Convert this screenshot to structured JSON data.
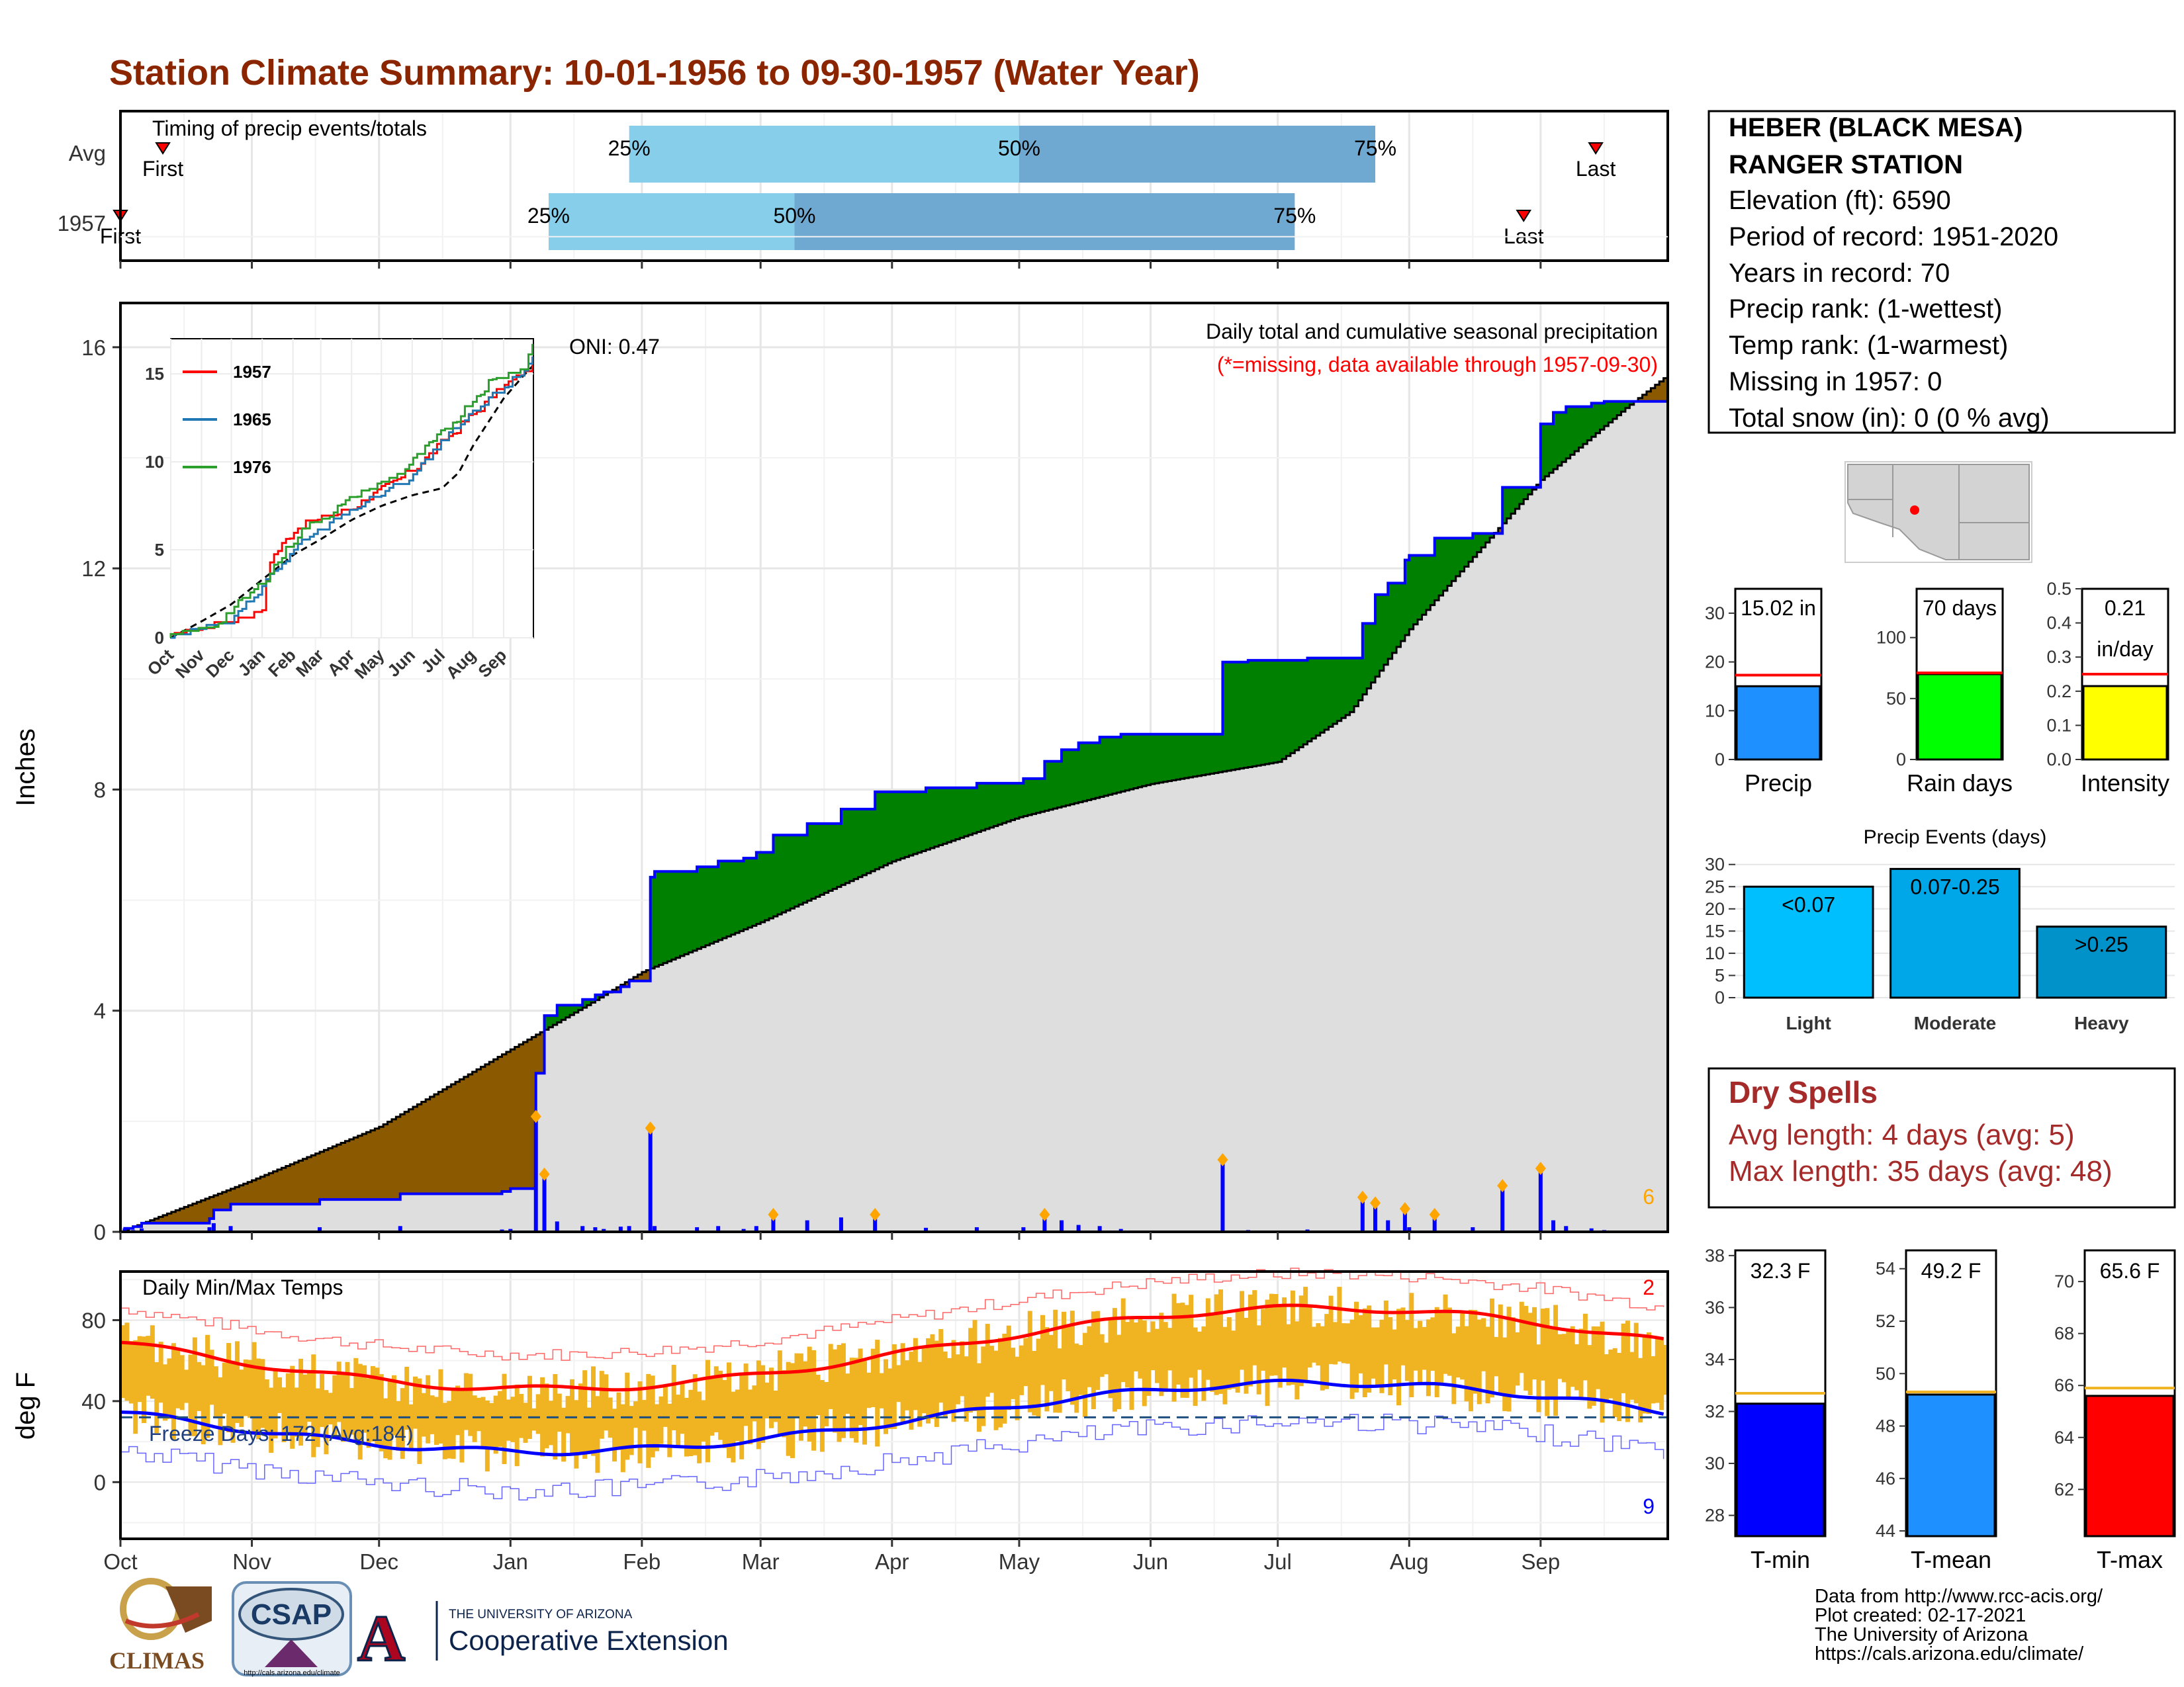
{
  "title": "Station Climate Summary: 10-01-1956 to 09-30-1957 (Water Year)",
  "colors": {
    "title": "#8b2500",
    "q1": "#87ceeb",
    "q2": "#6fa8d0",
    "surplus": "#008000",
    "deficit": "#8b5a00",
    "avg_fill": "#dedede",
    "obs_line": "#0000ff",
    "temp_bar": "#f0b422",
    "tmax_avg": "#ff0000",
    "tmin_avg": "#0000ff",
    "dry": "#a52a2a"
  },
  "timing": {
    "label": "Timing of precip events/totals",
    "rows": [
      {
        "label": "Avg",
        "first_day": 10,
        "q25": 120,
        "q50": 212,
        "q75": 296,
        "last_day": 348,
        "first_label": "First",
        "last_label": "Last"
      },
      {
        "label": "1957",
        "first_day": 0,
        "q25": 101,
        "q50": 159,
        "q75": 277,
        "last_day": 331,
        "first_label": "First",
        "last_label": "Last"
      }
    ],
    "p25_label": "25%",
    "p50_label": "50%",
    "p75_label": "75%"
  },
  "months": [
    "Oct",
    "Nov",
    "Dec",
    "Jan",
    "Feb",
    "Mar",
    "Apr",
    "May",
    "Jun",
    "Jul",
    "Aug",
    "Sep"
  ],
  "precip": {
    "ylabel": "Inches",
    "y_ticks": [
      0,
      4,
      8,
      12,
      16
    ],
    "ylim": [
      0,
      16.8
    ],
    "oni_label": "ONI: 0.47",
    "label_main": "Daily total and cumulative seasonal precipitation",
    "label_missing": "(*=missing, data available through 1957-09-30)",
    "corner_count": "6"
  },
  "inset": {
    "months": [
      "Oct",
      "Nov",
      "Dec",
      "Jan",
      "Feb",
      "Mar",
      "Apr",
      "May",
      "Jun",
      "Jul",
      "Aug",
      "Sep"
    ],
    "y_ticks": [
      0,
      5,
      10,
      15
    ],
    "legend": [
      {
        "name": "1957",
        "color": "#ff0000"
      },
      {
        "name": "1965",
        "color": "#1f77b4"
      },
      {
        "name": "1976",
        "color": "#2ca02c"
      }
    ]
  },
  "station": {
    "name1": "HEBER (BLACK MESA)",
    "name2": "RANGER STATION",
    "lines": [
      "Elevation (ft): 6590",
      "Period of record: 1951-2020",
      "Years in record: 70",
      "Precip rank:  (1-wettest)",
      "Temp rank:  (1-warmest)",
      "Missing in 1957: 0",
      "Total snow (in): 0 (0 % avg)"
    ]
  },
  "summary_bars": [
    {
      "label": "Precip",
      "value_text": "15.02 in",
      "value": 15.02,
      "avg": 17.3,
      "ymax": 35,
      "ticks": [
        0,
        10,
        20,
        30
      ],
      "color": "#1e90ff"
    },
    {
      "label": "Rain days",
      "value_text": "70 days",
      "value": 70,
      "avg": 71,
      "ymax": 140,
      "ticks": [
        0,
        50,
        100
      ],
      "color": "#00ff00"
    },
    {
      "label": "Intensity",
      "value_text": "0.21",
      "value_text2": "in/day",
      "value": 0.215,
      "avg": 0.25,
      "ymax": 0.5,
      "ticks": [
        0.0,
        0.1,
        0.2,
        0.3,
        0.4,
        0.5
      ],
      "tick_labels": [
        "0.0",
        "0.1",
        "0.2",
        "0.3",
        "0.4",
        "0.5"
      ],
      "color": "#ffff00"
    }
  ],
  "events": {
    "title": "Precip Events (days)",
    "ticks": [
      0,
      5,
      10,
      15,
      20,
      25,
      30
    ],
    "ymax": 31,
    "bars": [
      {
        "label": "Light",
        "range": "<0.07",
        "value": 25,
        "color": "#00bfff"
      },
      {
        "label": "Moderate",
        "range": "0.07-0.25",
        "value": 29,
        "color": "#00a7e8"
      },
      {
        "label": "Heavy",
        "range": ">0.25",
        "value": 16,
        "color": "#0092c8"
      }
    ]
  },
  "dry_spells": {
    "title": "Dry Spells",
    "avg": "Avg length: 4 days (avg: 5)",
    "max": "Max length: 35 days (avg: 48)"
  },
  "temps": {
    "ylabel": "deg F",
    "label": "Daily Min/Max Temps",
    "freeze": "Freeze Days: 172 (Avg:184)",
    "y_ticks": [
      0,
      40,
      80
    ],
    "ylim": [
      -28,
      104
    ],
    "top_count": "2",
    "bottom_count": "9"
  },
  "temp_bars": [
    {
      "label": "T-min",
      "value_text": "32.3 F",
      "value": 32.3,
      "avg": 32.7,
      "ymin": 27.2,
      "ymax": 38.2,
      "ticks": [
        28,
        30,
        32,
        34,
        36,
        38
      ],
      "color": "#0000ff"
    },
    {
      "label": "T-mean",
      "value_text": "49.2 F",
      "value": 49.2,
      "avg": 49.3,
      "ymin": 43.8,
      "ymax": 54.7,
      "ticks": [
        44,
        46,
        48,
        50,
        52,
        54
      ],
      "color": "#1e90ff"
    },
    {
      "label": "T-max",
      "value_text": "65.6 F",
      "value": 65.6,
      "avg": 65.9,
      "ymin": 60.2,
      "ymax": 71.2,
      "ticks": [
        62,
        64,
        66,
        68,
        70
      ],
      "color": "#ff0000"
    }
  ],
  "logos": {
    "climas": "CLIMAS",
    "csap": "CSAP",
    "csap_url": "http://cals.arizona.edu/climate",
    "ua_small": "THE UNIVERSITY OF ARIZONA",
    "ua_big": "Cooperative Extension",
    "ua_letter": "A"
  },
  "credits": [
    "Data from http://www.rcc-acis.org/",
    "Plot created: 02-17-2021",
    "The University of Arizona",
    "https://cals.arizona.edu/climate/"
  ]
}
